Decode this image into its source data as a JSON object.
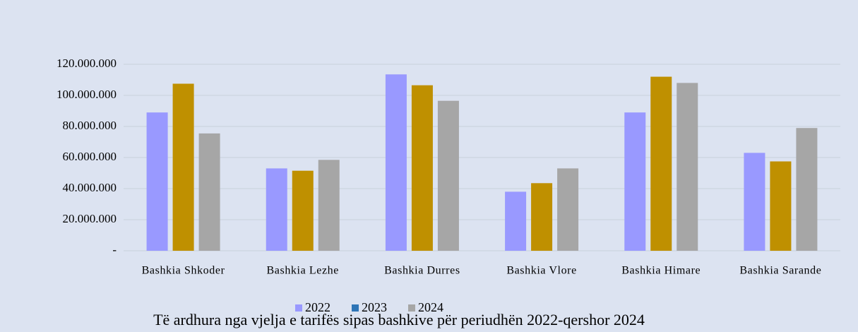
{
  "chart_data": {
    "type": "bar",
    "title": "Të ardhura nga vjelja e tarifës sipas bashkive për periudhën 2022-qershor 2024",
    "categories": [
      "Bashkia Shkoder",
      "Bashkia Lezhe",
      "Bashkia Durres",
      "Bashkia Vlore",
      "Bashkia Himare",
      "Bashkia Sarande"
    ],
    "series": [
      {
        "name": "2022",
        "color": "#9999ff",
        "legend_color": "#9999ff",
        "values": [
          89000000,
          53000000,
          113500000,
          38000000,
          89000000,
          63000000
        ]
      },
      {
        "name": "2023",
        "color": "#bf9000",
        "legend_color": "#2e75b6",
        "values": [
          107500000,
          51500000,
          106500000,
          43500000,
          112000000,
          57500000
        ]
      },
      {
        "name": "2024",
        "color": "#a6a6a6",
        "legend_color": "#a6a6a6",
        "values": [
          75500000,
          58500000,
          96500000,
          53000000,
          108000000,
          79000000
        ]
      }
    ],
    "ylim": [
      0,
      120000000
    ],
    "yticks": [
      {
        "value": 0,
        "label": "-"
      },
      {
        "value": 20000000,
        "label": "20.000.000"
      },
      {
        "value": 40000000,
        "label": "40.000.000"
      },
      {
        "value": 60000000,
        "label": "60.000.000"
      },
      {
        "value": 80000000,
        "label": "80.000.000"
      },
      {
        "value": 100000000,
        "label": "100.000.000"
      },
      {
        "value": 120000000,
        "label": "120.000.000"
      }
    ],
    "grid": true,
    "legend": "bottom"
  }
}
